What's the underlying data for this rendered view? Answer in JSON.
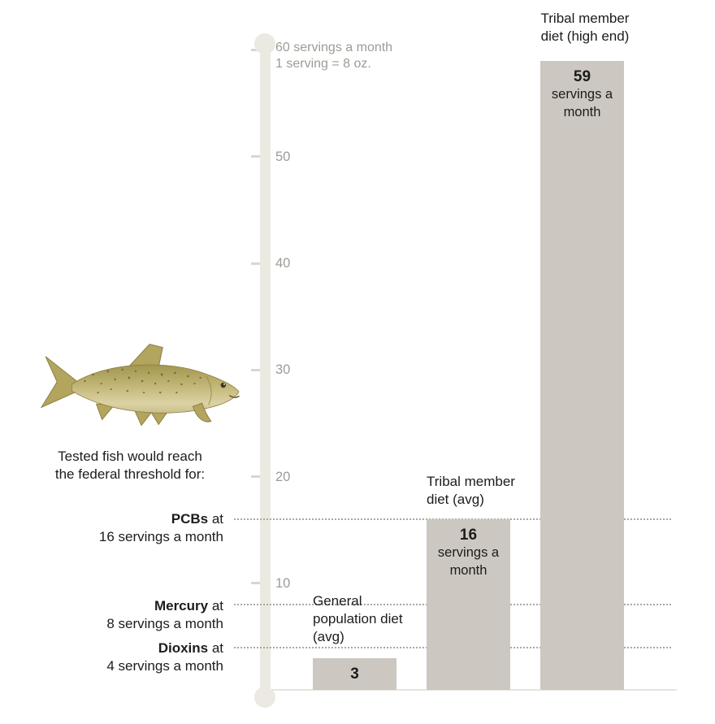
{
  "colors": {
    "background": "#ffffff",
    "text": "#1c1c1a",
    "muted_label": "#9c9c95",
    "bar_fill": "#ccc8c1",
    "axis_bar": "#ebe9e1",
    "tick": "#d9d7cd",
    "dotted_line": "#aaa8a1",
    "baseline": "#e6e4dd",
    "fish_body": "#c3b778",
    "fish_dark": "#6f6436"
  },
  "axis": {
    "note_line1": "60 servings a month",
    "note_line2": "1 serving = 8 oz.",
    "tick_labels": [
      "10",
      "20",
      "30",
      "40",
      "50"
    ]
  },
  "left_panel": {
    "intro_line1": "Tested fish would reach",
    "intro_line2": "the federal threshold for:",
    "thresholds": [
      {
        "name": "PCBs",
        "suffix": " at",
        "detail": "16 servings a month"
      },
      {
        "name": "Mercury",
        "suffix": " at",
        "detail": "8 servings a month"
      },
      {
        "name": "Dioxins",
        "suffix": " at",
        "detail": "4 servings a month"
      }
    ]
  },
  "chart_data": {
    "type": "bar",
    "title": "",
    "categories": [
      "General population diet (avg)",
      "Tribal member diet (avg)",
      "Tribal member diet (high end)"
    ],
    "values": [
      3,
      16,
      59
    ],
    "bar_value_labels": [
      {
        "number": "3",
        "caption": ""
      },
      {
        "number": "16",
        "caption": "servings a month"
      },
      {
        "number": "59",
        "caption": "servings a month"
      }
    ],
    "thresholds": [
      {
        "label": "PCBs",
        "value": 16
      },
      {
        "label": "Mercury",
        "value": 8
      },
      {
        "label": "Dioxins",
        "value": 4
      }
    ],
    "y_ticks": [
      10,
      20,
      30,
      40,
      50,
      60
    ],
    "ylim": [
      0,
      60
    ],
    "ylabel": "servings a month",
    "axis_note": [
      "60 servings a month",
      "1 serving = 8 oz."
    ],
    "grid": false,
    "legend": "none"
  }
}
